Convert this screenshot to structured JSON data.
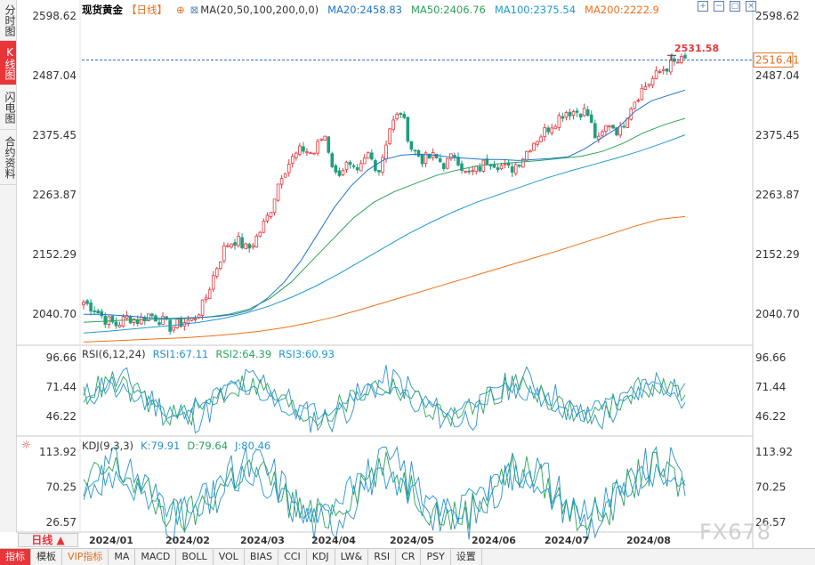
{
  "left_tabs": [
    "分时图",
    "K线图",
    "闪电图",
    "合约资料"
  ],
  "left_tab_active": 1,
  "header": {
    "name": "现货黄金",
    "period": "【日线】",
    "ma_params": "MA(20,50,100,200,0,0)",
    "ma20": "MA20:2458.83",
    "ma50": "MA50:2406.76",
    "ma100": "MA100:2375.54",
    "ma200": "MA200:2222.9"
  },
  "window_buttons": [
    "+",
    "−",
    "□",
    "×"
  ],
  "colors": {
    "up": "#e8353a",
    "down": "#1f9e7e",
    "ma20": "#1f77c8",
    "ma50": "#2ca35a",
    "ma100": "#1e9ad6",
    "ma200": "#f07018",
    "last_price_line": "#2b6cd0",
    "rsi1": "#2f8fc8",
    "rsi2": "#2ca35a",
    "rsi3": "#1e9ad6"
  },
  "price_axis": {
    "labels": [
      "2598.62",
      "2487.04",
      "2375.45",
      "2263.87",
      "2152.29",
      "2040.70"
    ],
    "min": 1982,
    "max": 2598.62
  },
  "last_price": "2516.41",
  "high_marker": "2531.58",
  "rsi": {
    "title": "RSI(6,12,24)",
    "rsi1": "RSI1:67.11",
    "rsi2": "RSI2:64.39",
    "rsi3": "RSI3:60.93",
    "labels": [
      "96.66",
      "71.44",
      "46.22"
    ]
  },
  "kdj": {
    "title": "KDJ(9,3,3)",
    "k": "K:79.91",
    "d": "D:79.64",
    "j": "J:80.46",
    "labels": [
      "113.92",
      "70.25",
      "26.57"
    ]
  },
  "x_labels": [
    "2024/01",
    "2024/02",
    "2024/03",
    "2024/04",
    "2024/05",
    "2024/06",
    "2024/07",
    "2024/08"
  ],
  "period_box": "日线 ▲",
  "bottom_tabs": [
    "指标",
    "模板",
    "VIP指标",
    "MA",
    "MACD",
    "BOLL",
    "VOL",
    "BIAS",
    "CCI",
    "KDJ",
    "LW&",
    "RSI",
    "CR",
    "PSY",
    "设置"
  ],
  "bottom_tab_active": 0,
  "watermark": "FX678",
  "chart_data": {
    "type": "candlestick",
    "x": [
      "2024/01",
      "2024/02",
      "2024/03",
      "2024/04",
      "2024/05",
      "2024/06",
      "2024/07",
      "2024/08"
    ],
    "close_path": [
      2063,
      2050,
      2030,
      2020,
      2035,
      2028,
      2040,
      2030,
      2015,
      2025,
      2030,
      2060,
      2120,
      2170,
      2180,
      2160,
      2190,
      2230,
      2300,
      2330,
      2350,
      2340,
      2380,
      2300,
      2320,
      2300,
      2340,
      2310,
      2390,
      2420,
      2350,
      2330,
      2335,
      2320,
      2340,
      2300,
      2310,
      2330,
      2320,
      2310,
      2330,
      2360,
      2380,
      2400,
      2420,
      2420,
      2420,
      2360,
      2400,
      2380,
      2430,
      2460,
      2480,
      2500,
      2510,
      2516
    ],
    "ma20": [
      2040,
      2040,
      2038,
      2036,
      2033,
      2032,
      2033,
      2034,
      2036,
      2040,
      2048,
      2070,
      2100,
      2140,
      2190,
      2240,
      2280,
      2310,
      2330,
      2338,
      2340,
      2338,
      2334,
      2332,
      2330,
      2330,
      2328,
      2330,
      2332,
      2335,
      2350,
      2370,
      2390,
      2420,
      2440,
      2450,
      2460
    ],
    "ma50": [
      2025,
      2027,
      2029,
      2030,
      2031,
      2032,
      2035,
      2040,
      2050,
      2070,
      2100,
      2140,
      2180,
      2220,
      2250,
      2270,
      2285,
      2300,
      2310,
      2318,
      2322,
      2325,
      2328,
      2332,
      2336,
      2345,
      2360,
      2380,
      2395,
      2407
    ],
    "ma100": [
      2005,
      2008,
      2012,
      2016,
      2020,
      2025,
      2032,
      2042,
      2055,
      2072,
      2092,
      2115,
      2140,
      2165,
      2190,
      2212,
      2232,
      2250,
      2265,
      2280,
      2295,
      2308,
      2320,
      2332,
      2345,
      2360,
      2376
    ],
    "ma200": [
      1988,
      1990,
      1992,
      1994,
      1996,
      1999,
      2003,
      2008,
      2015,
      2024,
      2035,
      2048,
      2062,
      2076,
      2090,
      2104,
      2118,
      2132,
      2146,
      2160,
      2175,
      2190,
      2205,
      2218,
      2223
    ],
    "rsi_last": [
      67.11,
      64.39,
      60.93
    ],
    "kdj_last": [
      79.91,
      79.64,
      80.46
    ],
    "ylim": [
      1982,
      2598.62
    ]
  }
}
